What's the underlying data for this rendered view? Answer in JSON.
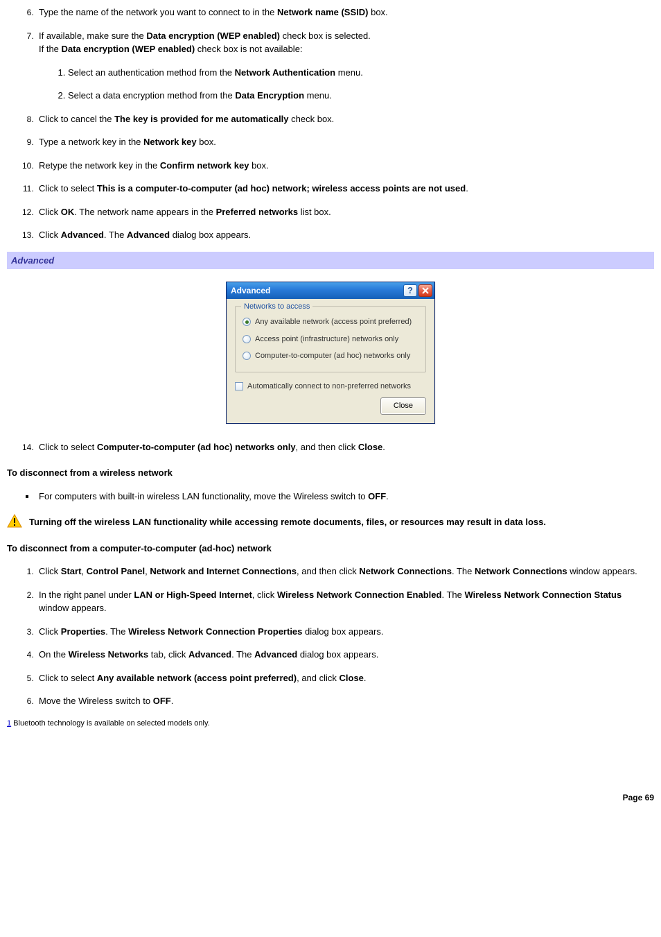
{
  "steps_a": [
    {
      "n": "6.",
      "pre": "Type the name of the network you want to connect to in the ",
      "b1": "Network name (SSID)",
      "post": " box."
    },
    {
      "n": "7.",
      "line1_pre": "If available, make sure the ",
      "line1_b": "Data encryption (WEP enabled)",
      "line1_post": " check box is selected.",
      "line2_pre": "If the ",
      "line2_b": "Data encryption (WEP enabled)",
      "line2_post": " check box is not available:",
      "sub": [
        {
          "n": "1.",
          "pre": "Select an authentication method from the ",
          "b": "Network Authentication",
          "post": " menu."
        },
        {
          "n": "2.",
          "pre": "Select a data encryption method from the ",
          "b": "Data Encryption",
          "post": " menu."
        }
      ]
    },
    {
      "n": "8.",
      "pre": "Click to cancel the ",
      "b1": "The key is provided for me automatically",
      "post": " check box."
    },
    {
      "n": "9.",
      "pre": "Type a network key in the ",
      "b1": "Network key",
      "post": " box."
    },
    {
      "n": "10.",
      "pre": "Retype the network key in the ",
      "b1": "Confirm network key",
      "post": " box."
    },
    {
      "n": "11.",
      "pre": "Click to select ",
      "b1": "This is a computer-to-computer (ad hoc) network; wireless access points are not used",
      "post": "."
    },
    {
      "n": "12.",
      "pre": "Click ",
      "b1": "OK",
      "mid": ". The network name appears in the ",
      "b2": "Preferred networks",
      "post": " list box."
    },
    {
      "n": "13.",
      "pre": "Click ",
      "b1": "Advanced",
      "mid": ". The ",
      "b2": "Advanced",
      "post": " dialog box appears."
    }
  ],
  "section_bar": "Advanced",
  "dialog": {
    "title": "Advanced",
    "group_label": "Networks to access",
    "radios": [
      {
        "label": "Any available network (access point preferred)",
        "checked": true
      },
      {
        "label": "Access point (infrastructure) networks only",
        "checked": false
      },
      {
        "label": "Computer-to-computer (ad hoc) networks only",
        "checked": false
      }
    ],
    "checkbox_label": "Automatically connect to non-preferred networks",
    "close_btn": "Close"
  },
  "step14": {
    "n": "14.",
    "pre": "Click to select ",
    "b1": "Computer-to-computer (ad hoc) networks only",
    "mid": ", and then click ",
    "b2": "Close",
    "post": "."
  },
  "heading2": "To disconnect from a wireless network",
  "bullet1": {
    "pre": "For computers with built-in wireless LAN functionality, move the Wireless switch to ",
    "b": "OFF",
    "post": "."
  },
  "warning": "Turning off the wireless LAN functionality while accessing remote documents, files, or resources may result in data loss.",
  "heading3": "To disconnect from a computer-to-computer (ad-hoc) network",
  "steps_b": [
    {
      "n": "1.",
      "parts": [
        {
          "t": "Click "
        },
        {
          "b": "Start"
        },
        {
          "t": ", "
        },
        {
          "b": "Control Panel"
        },
        {
          "t": ", "
        },
        {
          "b": "Network and Internet Connections"
        },
        {
          "t": ", and then click "
        },
        {
          "b": "Network Connections"
        },
        {
          "t": ". The "
        },
        {
          "b": "Network Connections"
        },
        {
          "t": " window appears."
        }
      ]
    },
    {
      "n": "2.",
      "parts": [
        {
          "t": "In the right panel under "
        },
        {
          "b": "LAN or High-Speed Internet"
        },
        {
          "t": ", click "
        },
        {
          "b": "Wireless Network Connection Enabled"
        },
        {
          "t": ". The "
        },
        {
          "b": "Wireless Network Connection Status"
        },
        {
          "t": " window appears."
        }
      ]
    },
    {
      "n": "3.",
      "parts": [
        {
          "t": "Click "
        },
        {
          "b": "Properties"
        },
        {
          "t": ". The "
        },
        {
          "b": "Wireless Network Connection Properties"
        },
        {
          "t": " dialog box appears."
        }
      ]
    },
    {
      "n": "4.",
      "parts": [
        {
          "t": "On the "
        },
        {
          "b": "Wireless Networks"
        },
        {
          "t": " tab, click "
        },
        {
          "b": "Advanced"
        },
        {
          "t": ". The "
        },
        {
          "b": "Advanced"
        },
        {
          "t": " dialog box appears."
        }
      ]
    },
    {
      "n": "5.",
      "parts": [
        {
          "t": "Click to select "
        },
        {
          "b": "Any available network (access point preferred)"
        },
        {
          "t": ", and click "
        },
        {
          "b": "Close"
        },
        {
          "t": "."
        }
      ]
    },
    {
      "n": "6.",
      "parts": [
        {
          "t": "Move the Wireless switch to "
        },
        {
          "b": "OFF"
        },
        {
          "t": "."
        }
      ]
    }
  ],
  "footnote_ref": "1",
  "footnote_text": " Bluetooth technology is available on selected models only.",
  "page_label": "Page 69",
  "colors": {
    "section_bg": "#ccccff",
    "section_fg": "#333399",
    "dialog_bg": "#ece9d8",
    "warn_fill": "#ffcc00",
    "warn_stroke": "#d98a00"
  }
}
